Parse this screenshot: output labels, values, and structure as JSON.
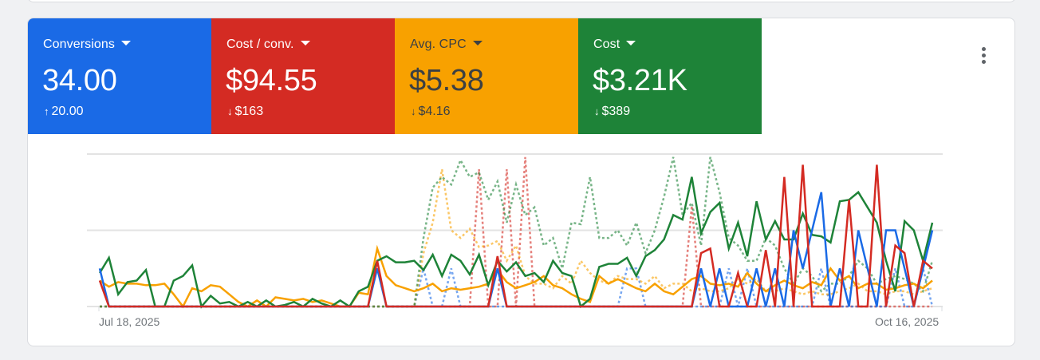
{
  "scorecards": [
    {
      "id": "conversions",
      "label": "Conversions",
      "value": "34.00",
      "delta": "20.00",
      "delta_dir": "up",
      "bg": "#1a6ae6",
      "fg": "#ffffff"
    },
    {
      "id": "cost-per-conv",
      "label": "Cost / conv.",
      "value": "$94.55",
      "delta": "$163",
      "delta_dir": "down",
      "bg": "#d42b23",
      "fg": "#ffffff"
    },
    {
      "id": "avg-cpc",
      "label": "Avg. CPC",
      "value": "$5.38",
      "delta": "$4.16",
      "delta_dir": "down",
      "bg": "#f8a100",
      "fg": "#3c4043"
    },
    {
      "id": "cost",
      "label": "Cost",
      "value": "$3.21K",
      "delta": "$389",
      "delta_dir": "down",
      "bg": "#1e8338",
      "fg": "#ffffff"
    }
  ],
  "menu": {
    "icon": "more-vert-icon"
  },
  "icons": {
    "up_arrow": "🠑",
    "down_arrow": "🠓",
    "caret": "dropdown-caret-icon"
  },
  "chart_data": {
    "type": "line",
    "title": "",
    "xlabel": "",
    "ylabel": "",
    "x_start_label": "Jul 18, 2025",
    "x_end_label": "Oct 16, 2025",
    "gridlines": [
      0,
      50,
      100
    ],
    "ylim": [
      0,
      100
    ],
    "n_points": 91,
    "series": [
      {
        "name": "Cost / conv. (previous)",
        "color": "#d42b23",
        "style": "dashed",
        "opacity": 0.6,
        "values": [
          0,
          0,
          0,
          0,
          0,
          0,
          0,
          0,
          0,
          0,
          0,
          0,
          0,
          0,
          0,
          0,
          0,
          0,
          0,
          0,
          0,
          0,
          0,
          0,
          0,
          0,
          0,
          0,
          0,
          0,
          0,
          0,
          0,
          0,
          0,
          0,
          0,
          0,
          0,
          0,
          0,
          90,
          0,
          0,
          90,
          0,
          98,
          0,
          0,
          0,
          0,
          0,
          0,
          0,
          0,
          0,
          0,
          0,
          0,
          0,
          0,
          0,
          0,
          0,
          66,
          0,
          0,
          0,
          0,
          0,
          0,
          0,
          0,
          0,
          0,
          0,
          0,
          0,
          0,
          0,
          0,
          0,
          0,
          0,
          0,
          0,
          0,
          0,
          0,
          0,
          0
        ]
      },
      {
        "name": "Conversions (previous)",
        "color": "#1a6ae6",
        "style": "dashed",
        "opacity": 0.6,
        "values": [
          0,
          0,
          0,
          0,
          0,
          0,
          0,
          0,
          0,
          0,
          0,
          0,
          0,
          0,
          0,
          0,
          0,
          0,
          0,
          0,
          0,
          0,
          0,
          0,
          0,
          0,
          0,
          0,
          0,
          0,
          0,
          0,
          0,
          0,
          0,
          25,
          0,
          0,
          25,
          0,
          0,
          0,
          0,
          0,
          0,
          0,
          0,
          0,
          0,
          0,
          0,
          0,
          0,
          0,
          0,
          0,
          0,
          25,
          25,
          0,
          0,
          0,
          0,
          0,
          0,
          0,
          0,
          0,
          25,
          0,
          25,
          0,
          0,
          0,
          0,
          0,
          0,
          0,
          25,
          0,
          0,
          0,
          0,
          0,
          0,
          0,
          25,
          0,
          0,
          25,
          0
        ]
      },
      {
        "name": "Avg. CPC (previous)",
        "color": "#f8a100",
        "style": "dashed",
        "opacity": 0.6,
        "values": [
          0,
          0,
          0,
          0,
          0,
          0,
          0,
          0,
          0,
          0,
          0,
          0,
          0,
          0,
          0,
          0,
          0,
          0,
          0,
          0,
          0,
          0,
          0,
          0,
          0,
          0,
          0,
          0,
          0,
          0,
          0,
          0,
          0,
          0,
          0,
          35,
          55,
          90,
          50,
          45,
          51,
          39,
          40,
          43,
          30,
          40,
          20,
          15,
          15,
          12,
          20,
          15,
          30,
          22,
          17,
          15,
          20,
          18,
          18,
          15,
          20,
          12,
          15,
          15,
          10,
          12,
          10,
          10,
          12,
          18,
          15,
          18,
          10,
          10,
          12,
          10,
          8,
          10,
          8,
          8,
          10,
          12,
          15,
          10,
          10,
          8,
          10,
          10,
          8,
          10,
          12
        ]
      },
      {
        "name": "Cost (previous)",
        "color": "#1e8338",
        "style": "dashed",
        "opacity": 0.6,
        "values": [
          0,
          0,
          0,
          0,
          0,
          0,
          0,
          0,
          0,
          0,
          0,
          0,
          0,
          0,
          0,
          0,
          0,
          0,
          0,
          0,
          0,
          0,
          0,
          0,
          0,
          0,
          0,
          0,
          0,
          0,
          0,
          0,
          0,
          0,
          0,
          45,
          78,
          85,
          80,
          96,
          85,
          88,
          70,
          82,
          55,
          80,
          60,
          65,
          40,
          45,
          25,
          55,
          54,
          85,
          45,
          45,
          50,
          40,
          55,
          35,
          50,
          72,
          98,
          60,
          68,
          40,
          98,
          75,
          45,
          40,
          30,
          30,
          45,
          40,
          25,
          15,
          25,
          20,
          10,
          15,
          15,
          20,
          30,
          25,
          15,
          18,
          20,
          18,
          15,
          10,
          30
        ]
      },
      {
        "name": "Avg. CPC",
        "color": "#f8a100",
        "style": "solid",
        "opacity": 1,
        "values": [
          17,
          13,
          16,
          15,
          15,
          14,
          14,
          15,
          8,
          0,
          12,
          10,
          14,
          13,
          8,
          3,
          0,
          4,
          0,
          6,
          5,
          4,
          5,
          3,
          4,
          2,
          0,
          0,
          9,
          8,
          38,
          20,
          14,
          12,
          10,
          12,
          15,
          10,
          12,
          11,
          12,
          13,
          15,
          24,
          16,
          12,
          14,
          16,
          20,
          14,
          12,
          8,
          5,
          3,
          20,
          15,
          18,
          15,
          12,
          10,
          15,
          10,
          8,
          13,
          18,
          20,
          15,
          14,
          15,
          13,
          22,
          15,
          10,
          14,
          17,
          14,
          12,
          16,
          14,
          25,
          17,
          20,
          12,
          15,
          15,
          11,
          12,
          14,
          15,
          12,
          17
        ]
      },
      {
        "name": "Cost",
        "color": "#1e8338",
        "style": "solid",
        "opacity": 1,
        "values": [
          22,
          32,
          8,
          16,
          17,
          24,
          0,
          0,
          17,
          20,
          27,
          0,
          7,
          2,
          3,
          0,
          3,
          0,
          4,
          0,
          1,
          3,
          0,
          5,
          2,
          0,
          4,
          0,
          10,
          13,
          30,
          33,
          29,
          29,
          30,
          24,
          34,
          20,
          34,
          30,
          21,
          34,
          14,
          30,
          23,
          29,
          20,
          22,
          16,
          30,
          22,
          20,
          0,
          5,
          26,
          28,
          28,
          32,
          20,
          33,
          37,
          44,
          60,
          57,
          85,
          48,
          62,
          68,
          38,
          55,
          33,
          69,
          44,
          56,
          44,
          44,
          61,
          47,
          46,
          42,
          69,
          70,
          75,
          65,
          55,
          30,
          10,
          56,
          50,
          30,
          55
        ]
      },
      {
        "name": "Conversions",
        "color": "#1a6ae6",
        "style": "solid",
        "opacity": 1,
        "values": [
          25,
          0,
          0,
          0,
          0,
          0,
          0,
          0,
          0,
          0,
          0,
          0,
          0,
          0,
          0,
          0,
          0,
          0,
          0,
          0,
          0,
          0,
          0,
          0,
          0,
          0,
          0,
          0,
          0,
          0,
          25,
          0,
          0,
          0,
          0,
          0,
          0,
          0,
          0,
          0,
          0,
          0,
          0,
          25,
          0,
          0,
          0,
          0,
          0,
          0,
          0,
          0,
          0,
          0,
          0,
          0,
          0,
          0,
          0,
          0,
          0,
          0,
          0,
          0,
          0,
          25,
          0,
          25,
          0,
          0,
          0,
          25,
          0,
          25,
          0,
          50,
          25,
          50,
          75,
          0,
          25,
          0,
          50,
          25,
          0,
          50,
          50,
          25,
          0,
          25,
          50
        ]
      },
      {
        "name": "Cost / conv.",
        "color": "#d42b23",
        "style": "solid",
        "opacity": 1,
        "values": [
          17,
          0,
          0,
          0,
          0,
          0,
          0,
          0,
          0,
          0,
          0,
          0,
          0,
          0,
          0,
          0,
          0,
          0,
          0,
          0,
          0,
          0,
          0,
          0,
          0,
          0,
          0,
          0,
          0,
          0,
          30,
          0,
          0,
          0,
          0,
          0,
          0,
          0,
          0,
          0,
          0,
          0,
          0,
          33,
          0,
          0,
          0,
          0,
          0,
          0,
          0,
          0,
          0,
          0,
          0,
          0,
          0,
          0,
          0,
          0,
          0,
          0,
          0,
          0,
          0,
          35,
          38,
          0,
          0,
          22,
          0,
          0,
          37,
          0,
          85,
          0,
          93,
          0,
          0,
          0,
          0,
          70,
          0,
          0,
          93,
          0,
          40,
          35,
          0,
          30,
          25
        ]
      }
    ]
  }
}
